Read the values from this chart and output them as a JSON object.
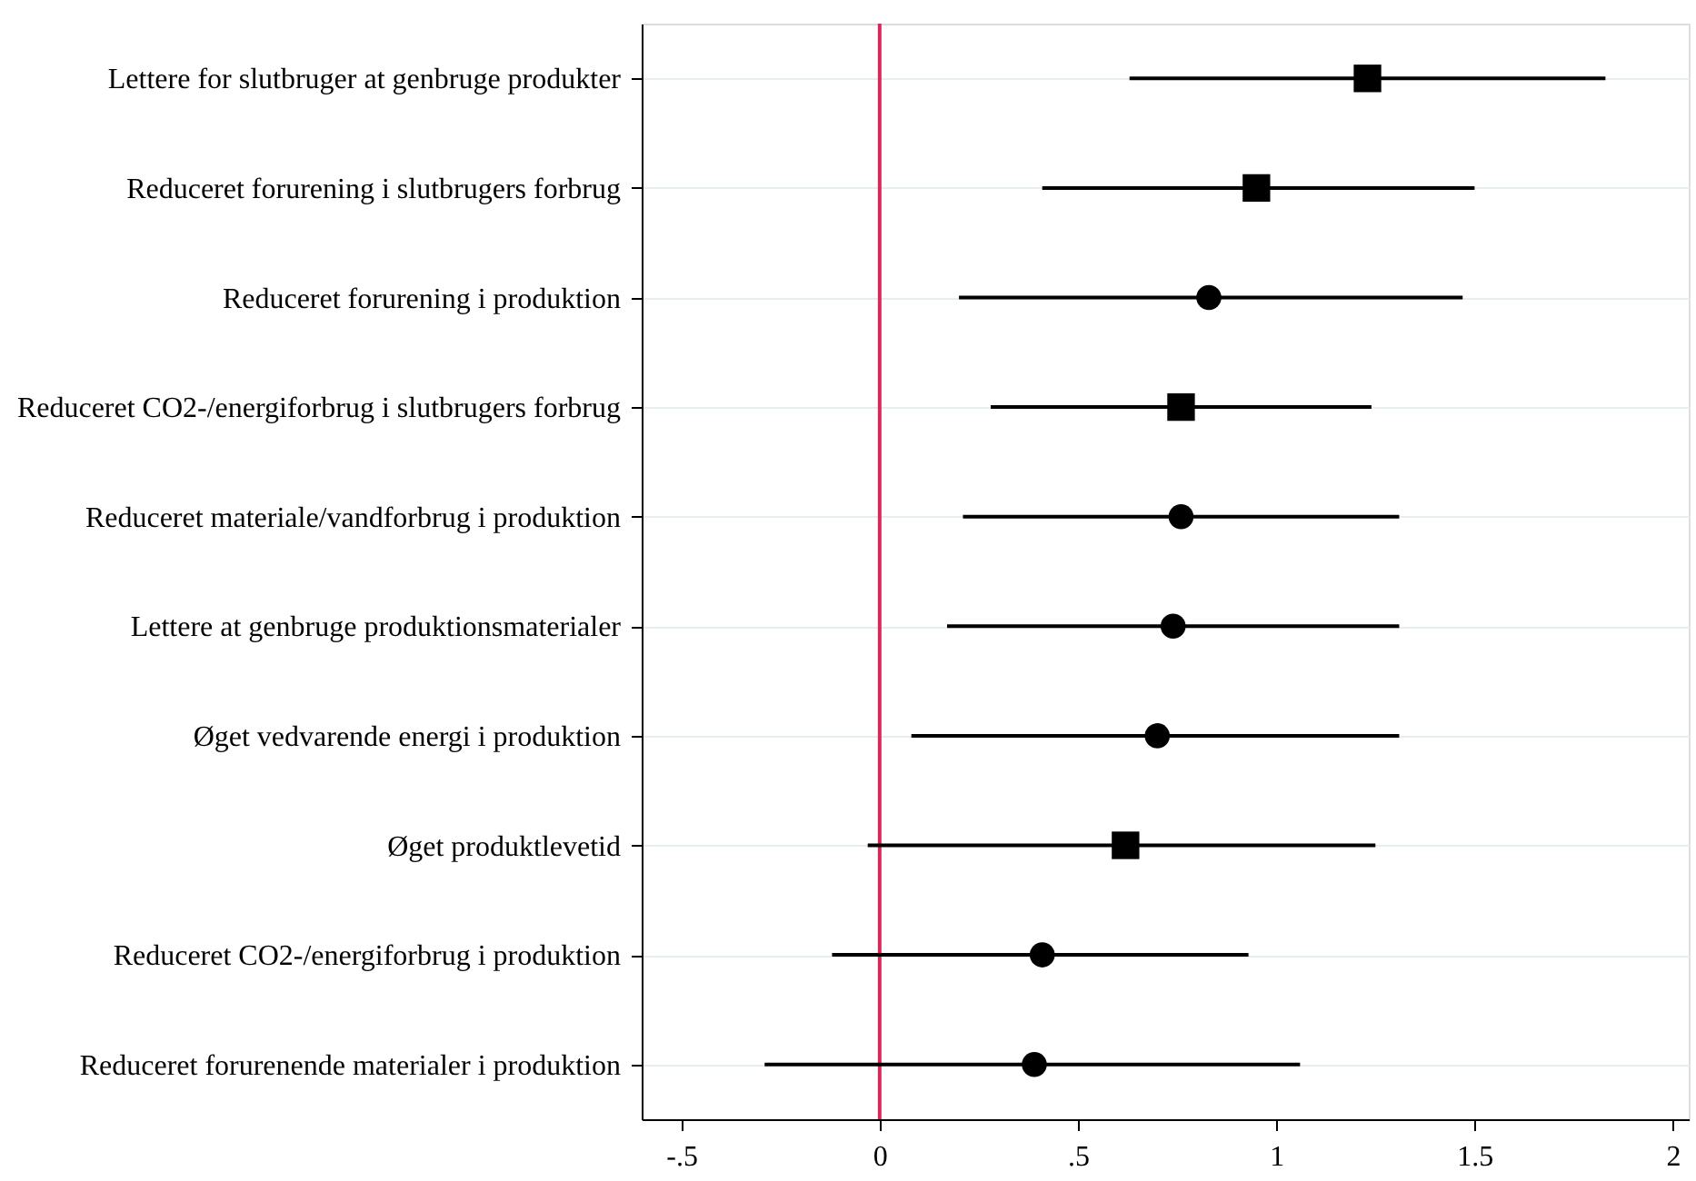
{
  "chart_data": {
    "type": "scatter",
    "orientation": "horizontal",
    "categories": [
      "Lettere for slutbruger at genbruge produkter",
      "Reduceret forurening i slutbrugers forbrug",
      "Reduceret forurening i produktion",
      "Reduceret CO2-/energiforbrug i slutbrugers forbrug",
      "Reduceret materiale/vandforbrug i produktion",
      "Lettere at genbruge produktionsmaterialer",
      "Øget vedvarende energi i produktion",
      "Øget produktlevetid",
      "Reduceret CO2-/energiforbrug i produktion",
      "Reduceret forurenende materialer i produktion"
    ],
    "series": [
      {
        "marker": "square",
        "color": "#000000",
        "values": [
          1.23,
          0.95,
          null,
          0.76,
          null,
          null,
          null,
          0.62,
          null,
          null
        ],
        "errors": [
          [
            0.63,
            1.83
          ],
          [
            0.41,
            1.5
          ],
          null,
          [
            0.28,
            1.24
          ],
          null,
          null,
          null,
          [
            -0.03,
            1.25
          ],
          null,
          null
        ]
      },
      {
        "marker": "circle",
        "color": "#000000",
        "values": [
          null,
          null,
          0.83,
          null,
          0.76,
          0.74,
          0.7,
          null,
          0.41,
          0.39
        ],
        "errors": [
          null,
          null,
          [
            0.2,
            1.47
          ],
          null,
          [
            0.21,
            1.31
          ],
          [
            0.17,
            1.31
          ],
          [
            0.08,
            1.31
          ],
          null,
          [
            -0.12,
            0.93
          ],
          [
            -0.29,
            1.06
          ]
        ]
      }
    ],
    "xlim": [
      -0.6,
      2.04
    ],
    "xticks": [
      {
        "value": -0.5,
        "label": "-.5"
      },
      0,
      {
        "value": 0.5,
        "label": ".5"
      },
      1,
      1.5,
      2
    ],
    "ref_lines": [
      {
        "axis": "x",
        "value": 0,
        "color": "#d62a5a"
      }
    ],
    "grid": "y"
  }
}
